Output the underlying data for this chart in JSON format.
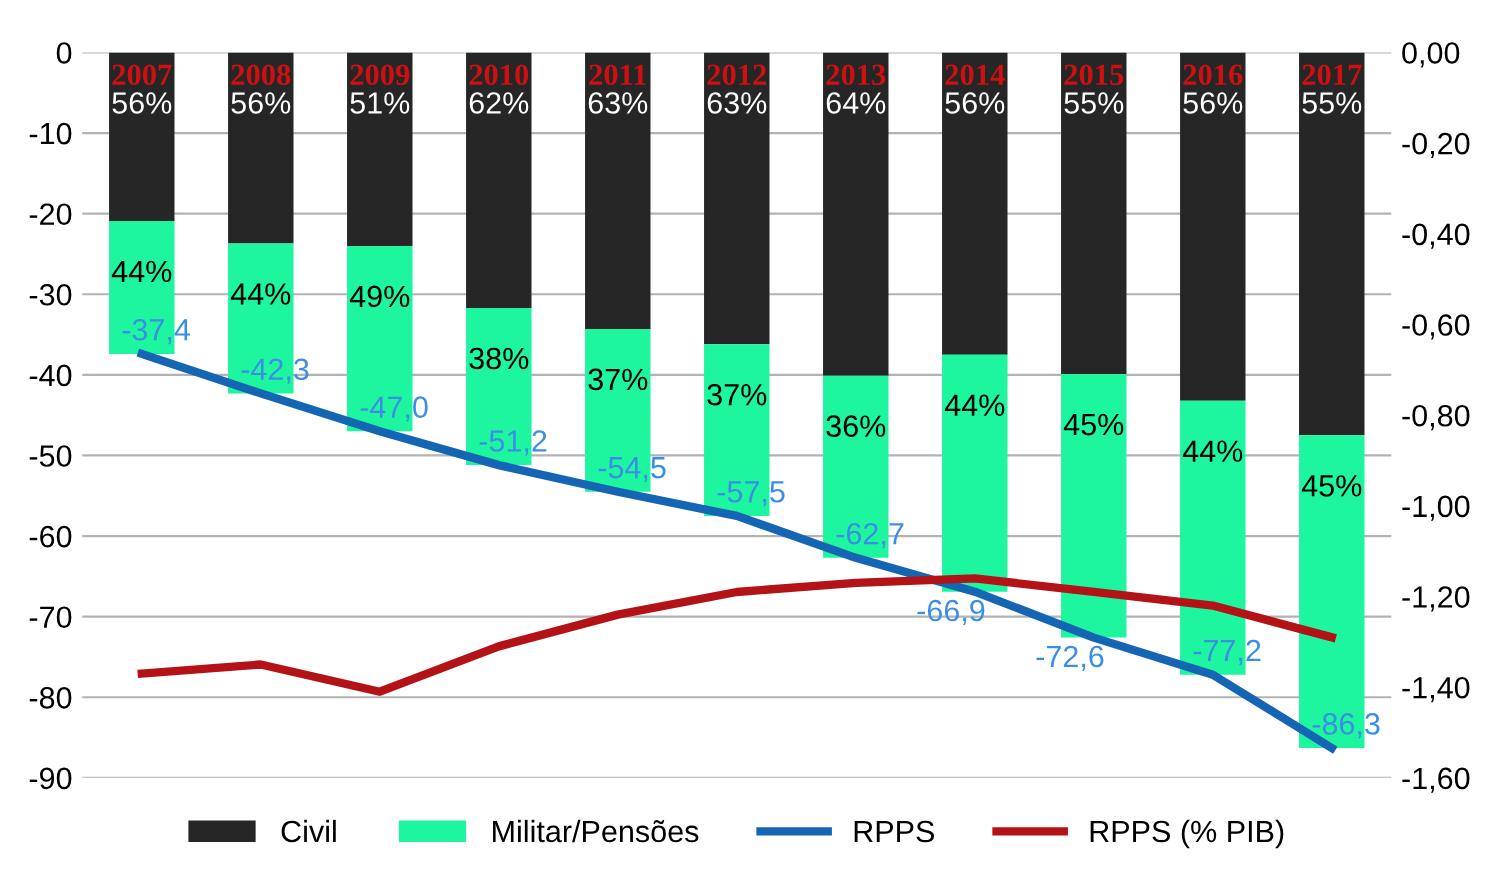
{
  "chart_data": {
    "type": "bar",
    "stacked": true,
    "categories": [
      "2007",
      "2008",
      "2009",
      "2010",
      "2011",
      "2012",
      "2013",
      "2014",
      "2015",
      "2016",
      "2017"
    ],
    "series": [
      {
        "name": "Civil",
        "color": "#262626",
        "values": [
          -20.9,
          -23.7,
          -24.0,
          -31.7,
          -34.3,
          -36.2,
          -40.1,
          -37.5,
          -39.9,
          -43.2,
          -47.5
        ]
      },
      {
        "name": "Militar/Pensões",
        "color": "#1ef59f",
        "values": [
          -16.5,
          -18.6,
          -23.0,
          -19.5,
          -20.2,
          -21.3,
          -22.6,
          -29.4,
          -32.7,
          -34.0,
          -38.8
        ]
      },
      {
        "name": "RPPS",
        "type": "line",
        "color": "#1565b5",
        "values": [
          -37.4,
          -42.3,
          -47.0,
          -51.2,
          -54.5,
          -57.5,
          -62.7,
          -66.9,
          -72.6,
          -77.2,
          -86.3
        ],
        "value_labels": [
          "-37,4",
          "-42,3",
          "-47,0",
          "-51,2",
          "-54,5",
          "-57,5",
          "-62,7",
          "-66,9",
          "-72,6",
          "-77,2",
          "-86,3"
        ]
      },
      {
        "name": "RPPS (% PIB)",
        "type": "line",
        "axis": "y2",
        "color": "#b31216",
        "values": [
          -1.37,
          -1.35,
          -1.41,
          -1.31,
          -1.24,
          -1.19,
          -1.17,
          -1.16,
          -1.19,
          -1.22,
          -1.29
        ]
      }
    ],
    "annotations": [
      {
        "text": "56%",
        "x": "2007",
        "y": 0
      },
      {
        "text": "56%",
        "x": "2008",
        "y": 0
      },
      {
        "text": "51%",
        "x": "2009",
        "y": 0
      },
      {
        "text": "62%",
        "x": "2010",
        "y": 0
      },
      {
        "text": "63%",
        "x": "2011",
        "y": 0
      },
      {
        "text": "63%",
        "x": "2012",
        "y": 0
      },
      {
        "text": "64%",
        "x": "2013",
        "y": 0
      },
      {
        "text": "56%",
        "x": "2014",
        "y": 0
      },
      {
        "text": "55%",
        "x": "2015",
        "y": 0
      },
      {
        "text": "56%",
        "x": "2016",
        "y": 0
      },
      {
        "text": "55%",
        "x": "2017",
        "y": 0
      },
      {
        "text": "44%",
        "x": "2007",
        "y": -20.9
      },
      {
        "text": "44%",
        "x": "2008",
        "y": -23.7
      },
      {
        "text": "49%",
        "x": "2009",
        "y": -24.0
      },
      {
        "text": "38%",
        "x": "2010",
        "y": -31.7
      },
      {
        "text": "37%",
        "x": "2011",
        "y": -34.3
      },
      {
        "text": "37%",
        "x": "2012",
        "y": -36.2
      },
      {
        "text": "36%",
        "x": "2013",
        "y": -40.1
      },
      {
        "text": "44%",
        "x": "2014",
        "y": -37.5
      },
      {
        "text": "45%",
        "x": "2015",
        "y": -39.9
      },
      {
        "text": "44%",
        "x": "2016",
        "y": -43.2
      },
      {
        "text": "45%",
        "x": "2017",
        "y": -47.5
      }
    ],
    "ylim": [
      -90,
      0
    ],
    "yticks": [
      -90,
      -80,
      -70,
      -60,
      -50,
      -40,
      -30,
      -20,
      -10,
      0
    ],
    "y2lim": [
      -1.6,
      0
    ],
    "y2ticks": [
      {
        "value": -1.6,
        "label": "-1,60"
      },
      {
        "value": -1.4,
        "label": "-1,40"
      },
      {
        "value": -1.2,
        "label": "-1,20"
      },
      {
        "value": -1.0,
        "label": "-1,00"
      },
      {
        "value": -0.8,
        "label": "-0,80"
      },
      {
        "value": -0.6,
        "label": "-0,60"
      },
      {
        "value": -0.4,
        "label": "-0,40"
      },
      {
        "value": -0.2,
        "label": "-0,20"
      },
      {
        "value": 0,
        "label": "0,00"
      }
    ],
    "grid": "y",
    "legend": "bottom",
    "marker": "none",
    "line_style": "solid"
  }
}
